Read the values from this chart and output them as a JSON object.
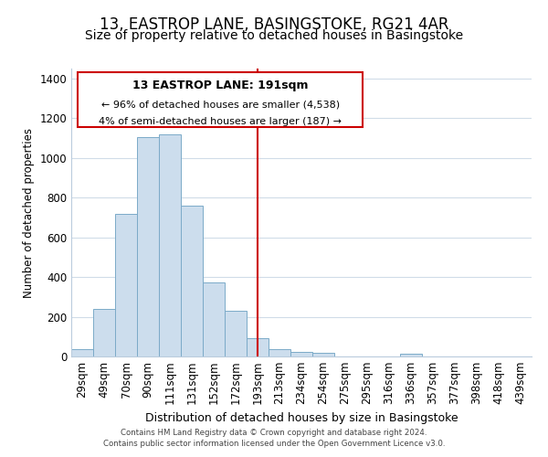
{
  "title": "13, EASTROP LANE, BASINGSTOKE, RG21 4AR",
  "subtitle": "Size of property relative to detached houses in Basingstoke",
  "xlabel": "Distribution of detached houses by size in Basingstoke",
  "ylabel": "Number of detached properties",
  "bar_labels": [
    "29sqm",
    "49sqm",
    "70sqm",
    "90sqm",
    "111sqm",
    "131sqm",
    "152sqm",
    "172sqm",
    "193sqm",
    "213sqm",
    "234sqm",
    "254sqm",
    "275sqm",
    "295sqm",
    "316sqm",
    "336sqm",
    "357sqm",
    "377sqm",
    "398sqm",
    "418sqm",
    "439sqm"
  ],
  "bar_values": [
    35,
    240,
    720,
    1105,
    1120,
    760,
    375,
    230,
    90,
    35,
    25,
    20,
    0,
    0,
    0,
    12,
    0,
    0,
    0,
    0,
    0
  ],
  "bar_color": "#ccdded",
  "bar_edge_color": "#7baac8",
  "vline_color": "#cc0000",
  "annotation_title": "13 EASTROP LANE: 191sqm",
  "annotation_line1": "← 96% of detached houses are smaller (4,538)",
  "annotation_line2": "4% of semi-detached houses are larger (187) →",
  "annotation_box_color": "#ffffff",
  "annotation_box_edge": "#cc0000",
  "footnote1": "Contains HM Land Registry data © Crown copyright and database right 2024.",
  "footnote2": "Contains public sector information licensed under the Open Government Licence v3.0.",
  "ylim": [
    0,
    1450
  ],
  "title_fontsize": 12,
  "subtitle_fontsize": 10,
  "background_color": "#ffffff",
  "grid_color": "#d0dce8"
}
